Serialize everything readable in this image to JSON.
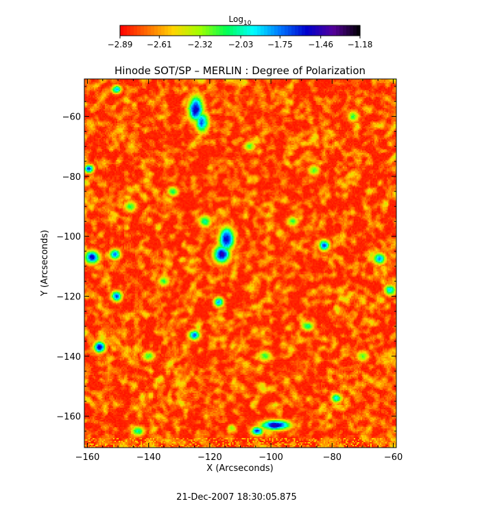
{
  "chart_data": {
    "type": "heatmap",
    "title": "Hinode SOT/SP – MERLIN : Degree of Polarization",
    "xlabel": "X (Arcseconds)",
    "ylabel": "Y (Arcseconds)",
    "xlim": [
      -161,
      -59
    ],
    "ylim": [
      -170.5,
      -47.5
    ],
    "x_ticks": [
      -160,
      -140,
      -120,
      -100,
      -80,
      -60
    ],
    "y_ticks": [
      -60,
      -80,
      -100,
      -120,
      -140,
      -160
    ],
    "x_tick_labels": [
      "−160",
      "−140",
      "−120",
      "−100",
      "−80",
      "−60"
    ],
    "y_tick_labels": [
      "−60",
      "−80",
      "−100",
      "−120",
      "−140",
      "−160"
    ],
    "colorbar": {
      "label": "Log",
      "label_subscript": "10",
      "ticks": [
        -2.89,
        -2.61,
        -2.32,
        -2.03,
        -1.75,
        -1.46,
        -1.18
      ],
      "tick_labels": [
        "−2.89",
        "−2.61",
        "−2.32",
        "−2.03",
        "−1.75",
        "−1.46",
        "−1.18"
      ],
      "range": [
        -2.89,
        -1.18
      ],
      "colors": [
        "#ff0000",
        "#ff6a00",
        "#ffd400",
        "#a0ff00",
        "#00ff55",
        "#00ffff",
        "#0077ff",
        "#0000cc",
        "#55009a",
        "#000000"
      ]
    },
    "features": [
      {
        "x": -124.5,
        "y": -57.5,
        "level": 0.82,
        "sx": 1.8,
        "sy": 3.2
      },
      {
        "x": -122.5,
        "y": -62,
        "level": 0.7,
        "sx": 1.6,
        "sy": 2.5
      },
      {
        "x": -114.5,
        "y": -101,
        "level": 0.85,
        "sx": 1.8,
        "sy": 2.8
      },
      {
        "x": -116,
        "y": -106,
        "level": 0.8,
        "sx": 2.0,
        "sy": 2.2
      },
      {
        "x": -98.5,
        "y": -163,
        "level": 0.85,
        "sx": 3.5,
        "sy": 1.2
      },
      {
        "x": -104.5,
        "y": -165,
        "level": 0.7,
        "sx": 1.5,
        "sy": 1.1
      },
      {
        "x": -158.5,
        "y": -107,
        "level": 0.78,
        "sx": 1.8,
        "sy": 1.6
      },
      {
        "x": -159.5,
        "y": -77.5,
        "level": 0.72,
        "sx": 1.2,
        "sy": 1.0
      },
      {
        "x": -156,
        "y": -137,
        "level": 0.78,
        "sx": 1.4,
        "sy": 1.4
      },
      {
        "x": -150.5,
        "y": -120,
        "level": 0.72,
        "sx": 1.3,
        "sy": 1.3
      },
      {
        "x": -151,
        "y": -106,
        "level": 0.68,
        "sx": 1.3,
        "sy": 1.3
      },
      {
        "x": -150.5,
        "y": -51,
        "level": 0.62,
        "sx": 1.2,
        "sy": 1.0
      },
      {
        "x": -82.5,
        "y": -103,
        "level": 0.72,
        "sx": 1.3,
        "sy": 1.3
      },
      {
        "x": -125,
        "y": -133,
        "level": 0.68,
        "sx": 1.4,
        "sy": 1.2
      },
      {
        "x": -117,
        "y": -122,
        "level": 0.65,
        "sx": 1.2,
        "sy": 1.2
      },
      {
        "x": -64.5,
        "y": -107.5,
        "level": 0.66,
        "sx": 1.5,
        "sy": 1.4
      },
      {
        "x": -61,
        "y": -118,
        "level": 0.6,
        "sx": 1.4,
        "sy": 1.3
      },
      {
        "x": -78.5,
        "y": -154,
        "level": 0.55,
        "sx": 1.4,
        "sy": 1.2
      },
      {
        "x": -143.5,
        "y": -165,
        "level": 0.5,
        "sx": 1.6,
        "sy": 1.2
      },
      {
        "x": -121.5,
        "y": -95,
        "level": 0.5,
        "sx": 1.5,
        "sy": 1.5
      },
      {
        "x": -88,
        "y": -130,
        "level": 0.48,
        "sx": 1.5,
        "sy": 1.2
      },
      {
        "x": -132,
        "y": -85,
        "level": 0.45,
        "sx": 1.4,
        "sy": 1.2
      },
      {
        "x": -140,
        "y": -140,
        "level": 0.42,
        "sx": 1.6,
        "sy": 1.2
      },
      {
        "x": -107,
        "y": -70,
        "level": 0.42,
        "sx": 1.4,
        "sy": 1.2
      },
      {
        "x": -73,
        "y": -60,
        "level": 0.42,
        "sx": 1.4,
        "sy": 1.4
      },
      {
        "x": -93,
        "y": -95,
        "level": 0.4,
        "sx": 1.5,
        "sy": 1.3
      },
      {
        "x": -146,
        "y": -90,
        "level": 0.42,
        "sx": 1.6,
        "sy": 1.4
      },
      {
        "x": -135,
        "y": -115,
        "level": 0.4,
        "sx": 1.5,
        "sy": 1.4
      },
      {
        "x": -102,
        "y": -140,
        "level": 0.4,
        "sx": 1.6,
        "sy": 1.4
      },
      {
        "x": -70,
        "y": -140,
        "level": 0.4,
        "sx": 1.5,
        "sy": 1.3
      },
      {
        "x": -86,
        "y": -78,
        "level": 0.38,
        "sx": 1.5,
        "sy": 1.3
      }
    ]
  },
  "footer": {
    "timestamp": "21-Dec-2007 18:30:05.875"
  }
}
